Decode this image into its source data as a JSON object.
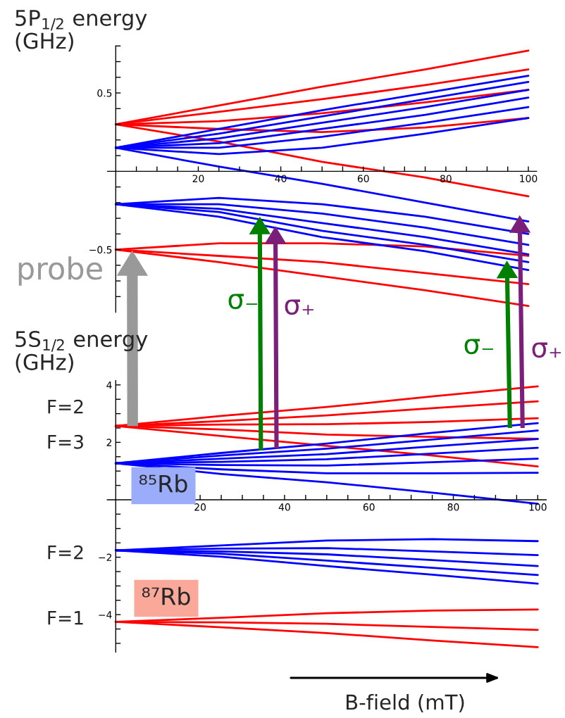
{
  "chart_data": [
    {
      "type": "line",
      "ylabel": "5P$_{1/2}$ energy\n(GHz)",
      "x": [
        0,
        25,
        50,
        75,
        100
      ],
      "xlim": [
        -2,
        102
      ],
      "ylim": [
        -0.9,
        0.8
      ],
      "xticks": [
        {
          "value": 5,
          "label": null
        },
        {
          "value": 10,
          "label": null
        },
        {
          "value": 15,
          "label": null
        },
        20,
        {
          "value": 25,
          "label": null
        },
        {
          "value": 30,
          "label": null
        },
        {
          "value": 35,
          "label": null
        },
        40,
        {
          "value": 45,
          "label": null
        },
        {
          "value": 50,
          "label": null
        },
        {
          "value": 55,
          "label": null
        },
        60,
        {
          "value": 65,
          "label": null
        },
        {
          "value": 70,
          "label": null
        },
        {
          "value": 75,
          "label": null
        },
        80,
        {
          "value": 85,
          "label": null
        },
        {
          "value": 90,
          "label": null
        },
        {
          "value": 95,
          "label": null
        },
        100
      ],
      "yticks": [
        {
          "value": -0.8,
          "label": null
        },
        {
          "value": -0.7,
          "label": null
        },
        {
          "value": -0.6,
          "label": null
        },
        {
          "value": -0.5,
          "label": "−0.5"
        },
        {
          "value": -0.4,
          "label": null
        },
        {
          "value": -0.3,
          "label": null
        },
        {
          "value": -0.2,
          "label": null
        },
        {
          "value": -0.1,
          "label": null
        },
        {
          "value": 0.1,
          "label": null
        },
        {
          "value": 0.2,
          "label": null
        },
        {
          "value": 0.3,
          "label": null
        },
        {
          "value": 0.4,
          "label": null
        },
        0.5,
        {
          "value": 0.6,
          "label": null
        },
        {
          "value": 0.7,
          "label": null
        },
        {
          "value": 0.8,
          "label": null
        }
      ],
      "grid": false,
      "marker": "none",
      "line_style": "solid",
      "annotations": [
        "probe",
        "σ₋",
        "σ₊",
        "σ₋",
        "σ₊"
      ],
      "series": [
        {
          "color": "#ff0000",
          "values": [
            0.3,
            0.42,
            0.54,
            0.65,
            0.77
          ]
        },
        {
          "color": "#ff0000",
          "values": [
            0.3,
            0.38,
            0.46,
            0.55,
            0.65
          ]
        },
        {
          "color": "#ff0000",
          "values": [
            0.3,
            0.32,
            0.37,
            0.44,
            0.52
          ]
        },
        {
          "color": "#ff0000",
          "values": [
            0.3,
            0.27,
            0.25,
            0.28,
            0.34
          ]
        },
        {
          "color": "#ff0000",
          "values": [
            0.3,
            0.19,
            0.06,
            -0.04,
            -0.16
          ]
        },
        {
          "color": "#ff0000",
          "values": [
            -0.5,
            -0.46,
            -0.46,
            -0.48,
            -0.54
          ]
        },
        {
          "color": "#ff0000",
          "values": [
            -0.5,
            -0.54,
            -0.58,
            -0.65,
            -0.72
          ]
        },
        {
          "color": "#ff0000",
          "values": [
            -0.5,
            -0.58,
            -0.67,
            -0.76,
            -0.86
          ]
        },
        {
          "color": "#0000ff",
          "values": [
            0.15,
            0.27,
            0.39,
            0.5,
            0.61
          ]
        },
        {
          "color": "#0000ff",
          "values": [
            0.15,
            0.24,
            0.35,
            0.46,
            0.57
          ]
        },
        {
          "color": "#0000ff",
          "values": [
            0.15,
            0.21,
            0.31,
            0.41,
            0.52
          ]
        },
        {
          "color": "#0000ff",
          "values": [
            0.15,
            0.18,
            0.27,
            0.36,
            0.47
          ]
        },
        {
          "color": "#0000ff",
          "values": [
            0.15,
            0.15,
            0.22,
            0.31,
            0.41
          ]
        },
        {
          "color": "#0000ff",
          "values": [
            0.15,
            0.11,
            0.15,
            0.24,
            0.34
          ]
        },
        {
          "color": "#0000ff",
          "values": [
            0.15,
            0.03,
            -0.08,
            -0.2,
            -0.32
          ]
        },
        {
          "color": "#0000ff",
          "values": [
            -0.21,
            -0.17,
            -0.21,
            -0.29,
            -0.4
          ]
        },
        {
          "color": "#0000ff",
          "values": [
            -0.21,
            -0.21,
            -0.27,
            -0.36,
            -0.47
          ]
        },
        {
          "color": "#0000ff",
          "values": [
            -0.21,
            -0.24,
            -0.33,
            -0.42,
            -0.53
          ]
        },
        {
          "color": "#0000ff",
          "values": [
            -0.21,
            -0.26,
            -0.38,
            -0.47,
            -0.58
          ]
        },
        {
          "color": "#0000ff",
          "values": [
            -0.21,
            -0.29,
            -0.42,
            -0.51,
            -0.63
          ]
        }
      ]
    },
    {
      "type": "line",
      "ylabel": "5S$_{1/2}$ energy\n(GHz)",
      "xlabel": "B-field (mT)",
      "x": [
        0,
        25,
        50,
        75,
        100
      ],
      "xlim": [
        -2,
        102
      ],
      "ylim": [
        -5.3,
        4.15
      ],
      "xticks": [
        {
          "value": 5,
          "label": null
        },
        {
          "value": 10,
          "label": null
        },
        {
          "value": 15,
          "label": null
        },
        20,
        {
          "value": 25,
          "label": null
        },
        {
          "value": 30,
          "label": null
        },
        {
          "value": 35,
          "label": null
        },
        40,
        {
          "value": 45,
          "label": null
        },
        {
          "value": 50,
          "label": null
        },
        {
          "value": 55,
          "label": null
        },
        60,
        {
          "value": 65,
          "label": null
        },
        {
          "value": 70,
          "label": null
        },
        {
          "value": 75,
          "label": null
        },
        80,
        {
          "value": 85,
          "label": null
        },
        {
          "value": 90,
          "label": null
        },
        {
          "value": 95,
          "label": null
        },
        100
      ],
      "yticks": [
        {
          "value": -5,
          "label": null
        },
        {
          "value": -4.5,
          "label": null
        },
        {
          "value": -4,
          "label": "−4"
        },
        {
          "value": -3.5,
          "label": null
        },
        {
          "value": -3,
          "label": null
        },
        {
          "value": -2.5,
          "label": null
        },
        {
          "value": -2,
          "label": "−2"
        },
        {
          "value": -1.5,
          "label": null
        },
        {
          "value": -1,
          "label": null
        },
        {
          "value": -0.5,
          "label": null
        },
        {
          "value": 0.5,
          "label": null
        },
        {
          "value": 1,
          "label": null
        },
        {
          "value": 1.5,
          "label": null
        },
        2,
        {
          "value": 2.5,
          "label": null
        },
        {
          "value": 3,
          "label": null
        },
        {
          "value": 3.5,
          "label": null
        },
        4
      ],
      "grid": false,
      "marker": "none",
      "line_style": "solid",
      "annotations": [
        "F=2",
        "F=3",
        "F=2",
        "F=1",
        "⁸⁵Rb",
        "⁸⁷Rb"
      ],
      "series": [
        {
          "color": "#ff0000",
          "values": [
            2.57,
            2.92,
            3.23,
            3.6,
            3.95
          ]
        },
        {
          "color": "#ff0000",
          "values": [
            2.57,
            2.74,
            2.94,
            3.19,
            3.43
          ]
        },
        {
          "color": "#ff0000",
          "values": [
            2.57,
            2.62,
            2.63,
            2.71,
            2.84
          ]
        },
        {
          "color": "#ff0000",
          "values": [
            2.57,
            2.45,
            2.27,
            2.19,
            2.12
          ]
        },
        {
          "color": "#ff0000",
          "values": [
            2.57,
            2.22,
            1.88,
            1.54,
            1.16
          ]
        },
        {
          "color": "#0000ff",
          "values": [
            1.27,
            1.63,
            1.96,
            2.33,
            2.67
          ]
        },
        {
          "color": "#0000ff",
          "values": [
            1.27,
            1.54,
            1.78,
            2.1,
            2.41
          ]
        },
        {
          "color": "#0000ff",
          "values": [
            1.27,
            1.43,
            1.59,
            1.86,
            2.12
          ]
        },
        {
          "color": "#0000ff",
          "values": [
            1.27,
            1.32,
            1.41,
            1.61,
            1.81
          ]
        },
        {
          "color": "#0000ff",
          "values": [
            1.27,
            1.21,
            1.19,
            1.31,
            1.43
          ]
        },
        {
          "color": "#0000ff",
          "values": [
            1.27,
            1.06,
            0.92,
            0.92,
            0.94
          ]
        },
        {
          "color": "#0000ff",
          "values": [
            1.27,
            0.9,
            0.61,
            0.25,
            -0.14
          ]
        },
        {
          "color": "#0000ff",
          "values": [
            -1.76,
            -1.59,
            -1.42,
            -1.37,
            -1.44
          ]
        },
        {
          "color": "#0000ff",
          "values": [
            -1.76,
            -1.7,
            -1.68,
            -1.8,
            -1.93
          ]
        },
        {
          "color": "#0000ff",
          "values": [
            -1.76,
            -1.8,
            -1.9,
            -2.1,
            -2.31
          ]
        },
        {
          "color": "#0000ff",
          "values": [
            -1.76,
            -1.88,
            -2.12,
            -2.37,
            -2.62
          ]
        },
        {
          "color": "#0000ff",
          "values": [
            -1.76,
            -1.98,
            -2.31,
            -2.61,
            -2.92
          ]
        },
        {
          "color": "#ff0000",
          "values": [
            -4.25,
            -4.11,
            -3.95,
            -3.86,
            -3.82
          ]
        },
        {
          "color": "#ff0000",
          "values": [
            -4.25,
            -4.27,
            -4.32,
            -4.43,
            -4.53
          ]
        },
        {
          "color": "#ff0000",
          "values": [
            -4.25,
            -4.44,
            -4.64,
            -4.9,
            -5.13
          ]
        }
      ]
    }
  ]
}
